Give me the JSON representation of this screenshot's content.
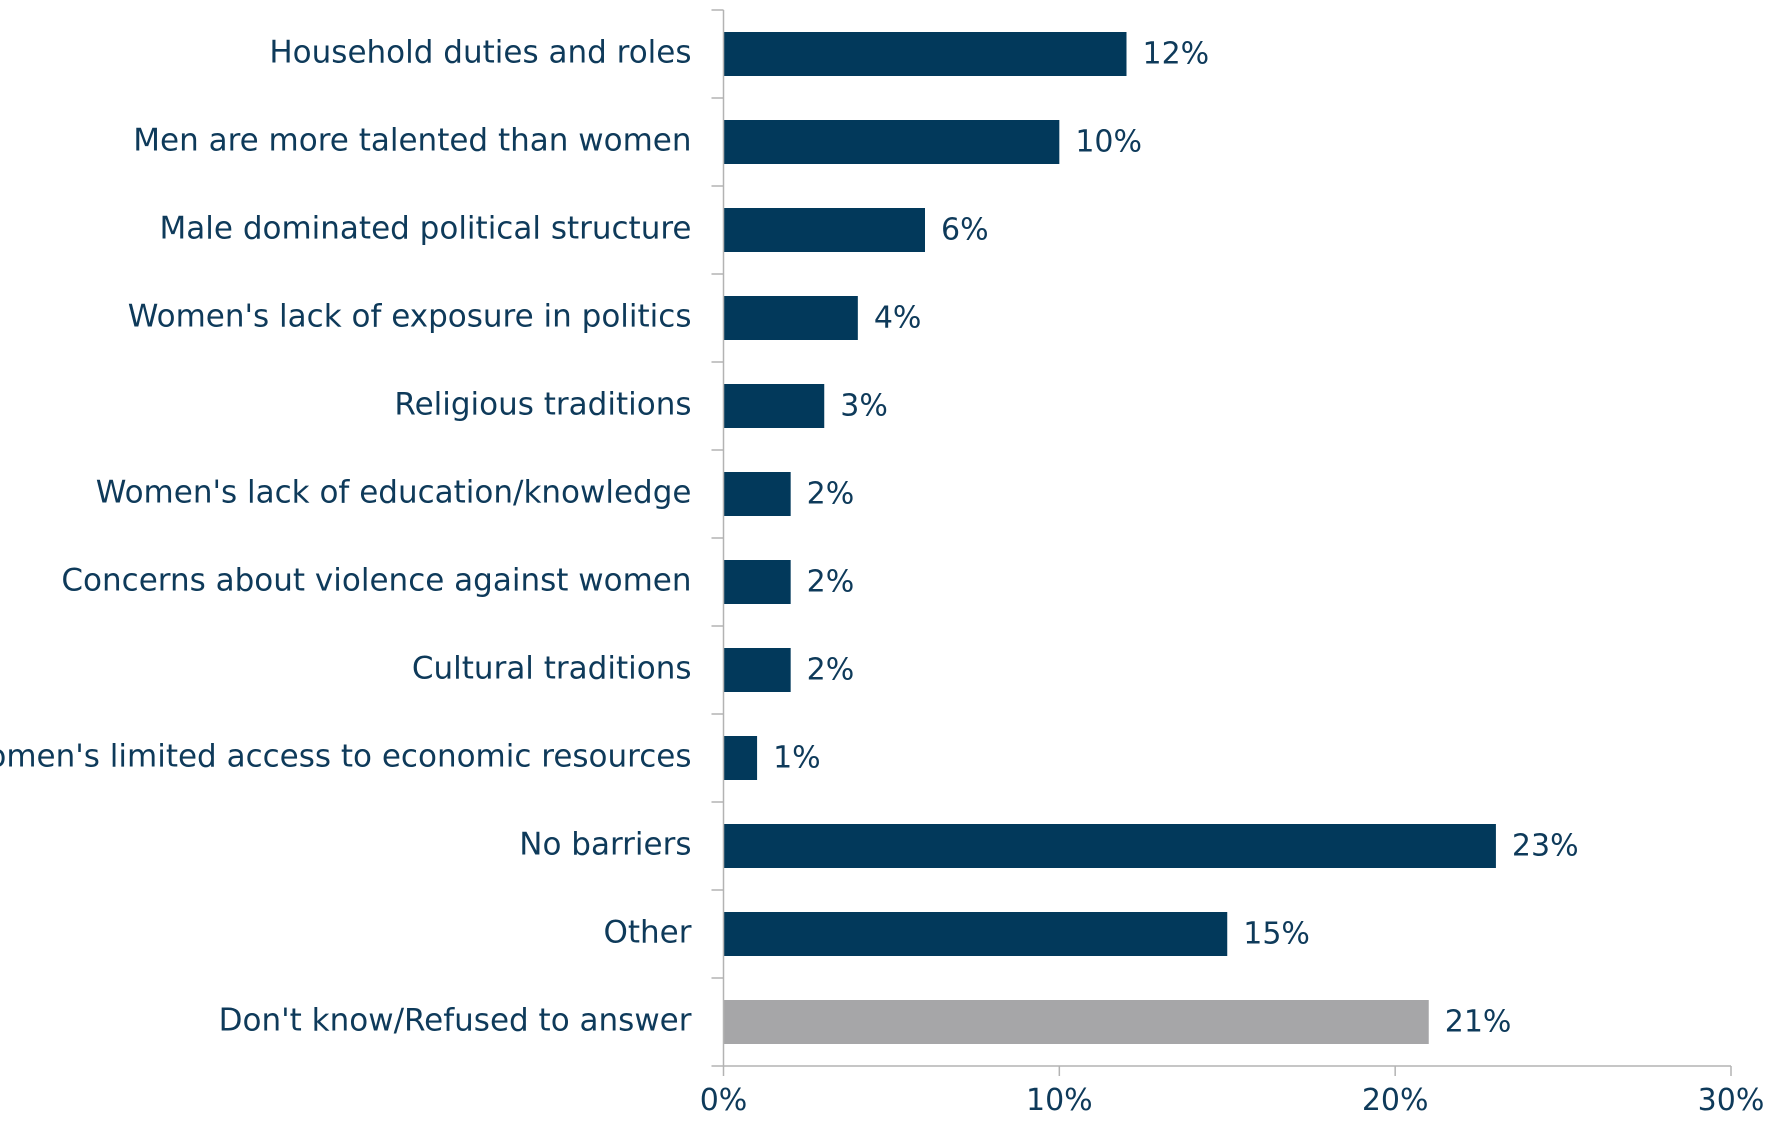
{
  "chart_data": {
    "type": "bar",
    "orientation": "horizontal",
    "title": "",
    "xlabel": "",
    "ylabel": "",
    "xlim": [
      0,
      30
    ],
    "x_ticks": [
      "0%",
      "10%",
      "20%",
      "30%"
    ],
    "grid": false,
    "legend": "none",
    "categories": [
      "Household duties and roles",
      "Men are more talented than women",
      "Male dominated political structure",
      "Women's lack of exposure in politics",
      "Religious traditions",
      "Women's lack of education/knowledge",
      "Concerns about violence against women",
      "Cultural traditions",
      "Women's limited access to economic resources",
      "No barriers",
      "Other",
      "Don't know/Refused to answer"
    ],
    "values": [
      12,
      10,
      6,
      4,
      3,
      2,
      2,
      2,
      1,
      23,
      15,
      21
    ],
    "value_labels": [
      "12%",
      "10%",
      "6%",
      "4%",
      "3%",
      "2%",
      "2%",
      "2%",
      "1%",
      "23%",
      "15%",
      "21%"
    ],
    "bar_colors": [
      "#02395b",
      "#02395b",
      "#02395b",
      "#02395b",
      "#02395b",
      "#02395b",
      "#02395b",
      "#02395b",
      "#02395b",
      "#02395b",
      "#02395b",
      "#a6a6a8"
    ]
  }
}
